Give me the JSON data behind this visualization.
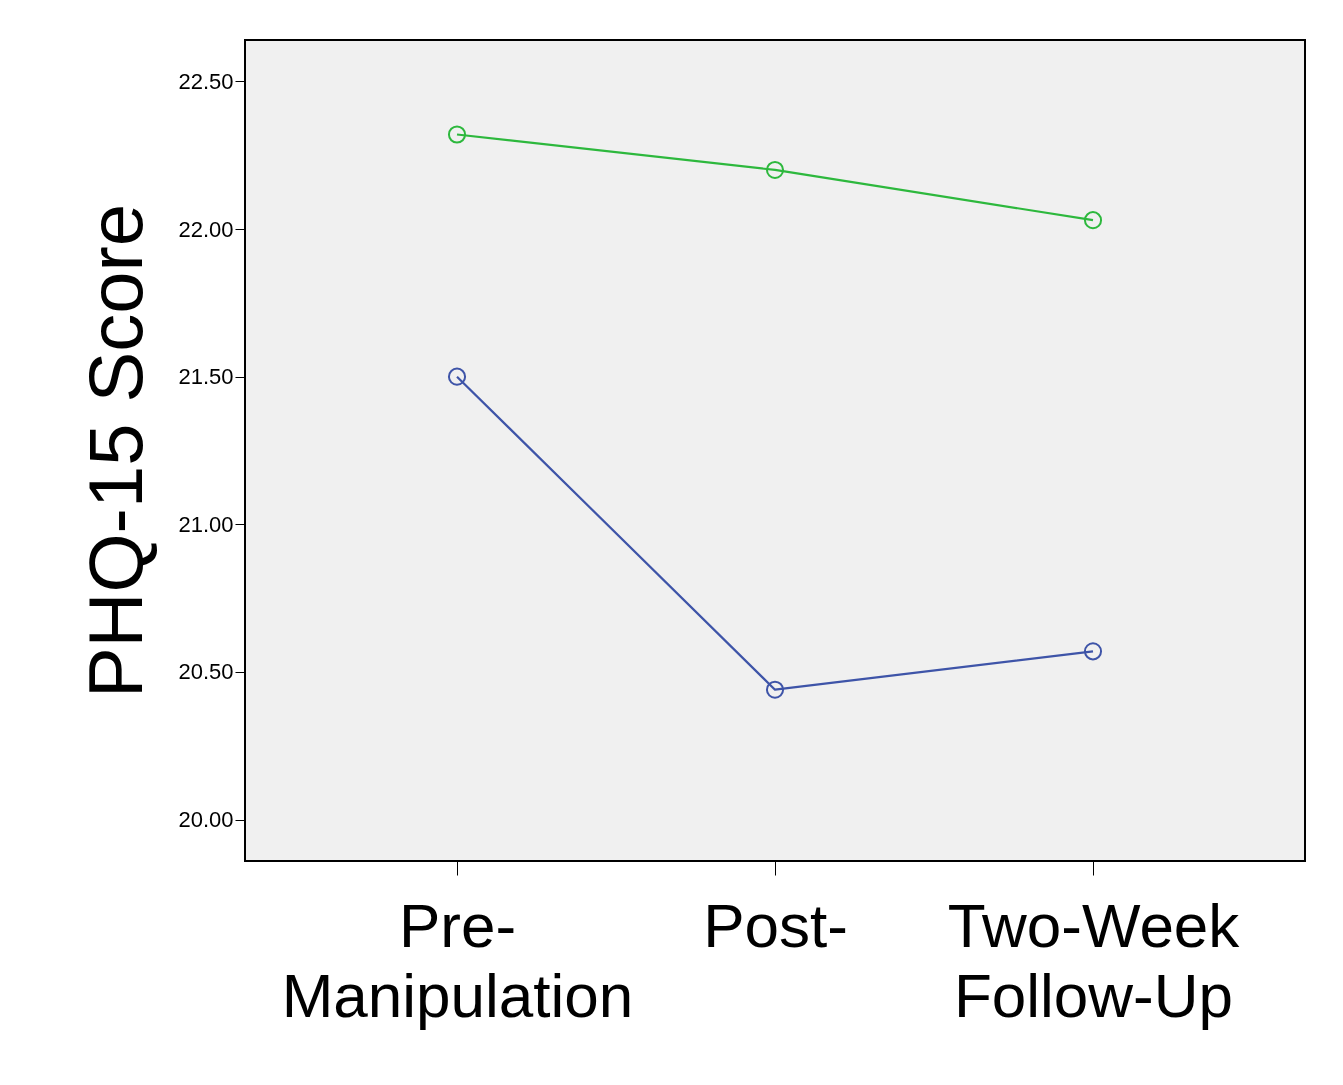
{
  "chart_data": {
    "type": "line",
    "ylabel": "PHQ-15 Score",
    "categories": [
      "Pre- Manipulation",
      "Post-",
      "Two-Week Follow-Up"
    ],
    "series": [
      {
        "color": "#3e54a8",
        "values": [
          21.5,
          20.44,
          20.57
        ]
      },
      {
        "color": "#2db83d",
        "values": [
          22.32,
          22.2,
          22.03
        ]
      }
    ],
    "ylim": [
      19.86,
      22.64
    ],
    "yticks": [
      {
        "value": 20,
        "label": "20.00"
      },
      {
        "value": 20.5,
        "label": "20.50"
      },
      {
        "value": 21,
        "label": "21.00"
      },
      {
        "value": 21.5,
        "label": "21.50"
      },
      {
        "value": 22,
        "label": "22.00"
      },
      {
        "value": 22.5,
        "label": "22.50"
      }
    ],
    "marker": "circle",
    "line_style": "solid",
    "grid": false
  }
}
